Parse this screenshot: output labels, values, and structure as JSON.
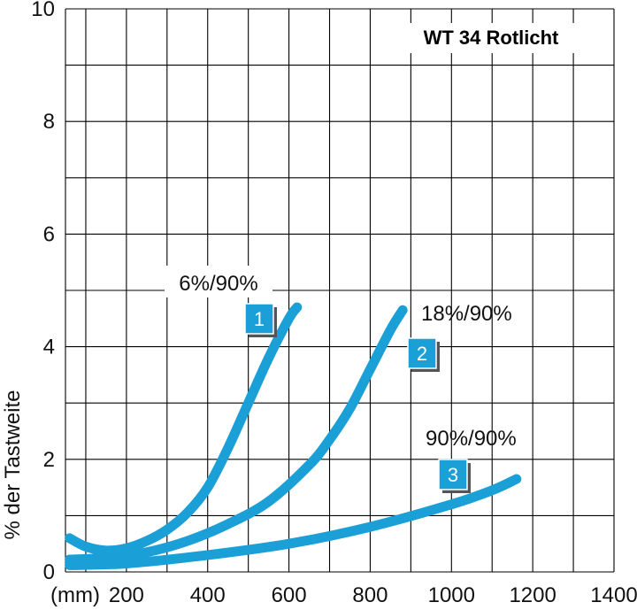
{
  "chart_data": {
    "type": "line",
    "title": "WT 34 Rotlicht",
    "xlabel": "(mm)",
    "ylabel": "% der Tastweite",
    "xlim": [
      50,
      1400
    ],
    "ylim": [
      0,
      10
    ],
    "x_ticks": [
      "200",
      "400",
      "600",
      "800",
      "1000",
      "1200",
      "1400"
    ],
    "y_ticks": [
      "0",
      "2",
      "4",
      "6",
      "8",
      "10"
    ],
    "grid": true,
    "series": [
      {
        "name": "6%/90%",
        "badge": "1",
        "color": "#1a9fd6",
        "x": [
          60,
          100,
          150,
          200,
          250,
          300,
          350,
          400,
          450,
          500,
          550,
          600,
          620
        ],
        "y": [
          0.6,
          0.45,
          0.38,
          0.42,
          0.55,
          0.75,
          1.05,
          1.5,
          2.2,
          3.0,
          3.8,
          4.5,
          4.7
        ]
      },
      {
        "name": "18%/90%",
        "badge": "2",
        "color": "#1a9fd6",
        "x": [
          60,
          150,
          250,
          350,
          450,
          550,
          650,
          700,
          750,
          800,
          850,
          880
        ],
        "y": [
          0.22,
          0.25,
          0.35,
          0.55,
          0.85,
          1.25,
          1.9,
          2.35,
          2.9,
          3.6,
          4.3,
          4.65
        ]
      },
      {
        "name": "90%/90%",
        "badge": "3",
        "color": "#1a9fd6",
        "x": [
          60,
          200,
          400,
          600,
          800,
          1000,
          1100,
          1160
        ],
        "y": [
          0.12,
          0.15,
          0.3,
          0.5,
          0.8,
          1.2,
          1.45,
          1.65
        ]
      }
    ]
  }
}
